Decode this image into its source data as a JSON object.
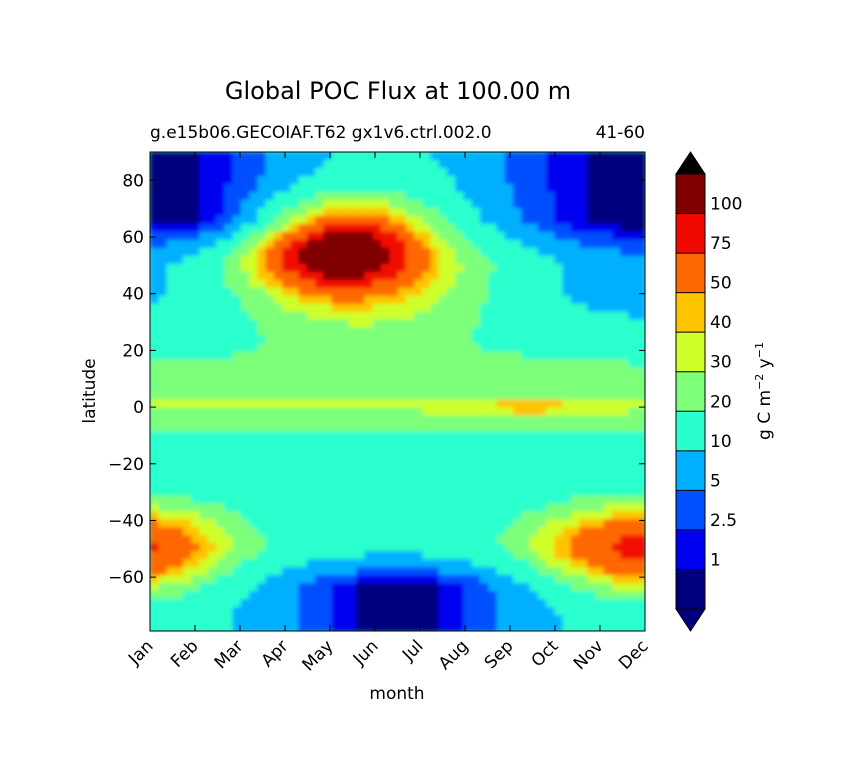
{
  "chart_data": {
    "type": "heatmap",
    "subtype": "filled-contour",
    "title": "Global POC Flux at 100.00 m",
    "subtitle_left": "g.e15b06.GECOIAF.T62 gx1v6.ctrl.002.0",
    "subtitle_right": "41-60",
    "xlabel": "month",
    "ylabel": "latitude",
    "x_categories": [
      "Jan",
      "Feb",
      "Mar",
      "Apr",
      "May",
      "Jun",
      "Jul",
      "Aug",
      "Sep",
      "Oct",
      "Nov",
      "Dec"
    ],
    "yticks": [
      80,
      60,
      40,
      20,
      0,
      -20,
      -40,
      -60
    ],
    "ytick_labels": [
      "80",
      "60",
      "40",
      "20",
      "0",
      "−20",
      "−40",
      "−60"
    ],
    "ylim": [
      -79,
      90
    ],
    "colorbar": {
      "label_text": "g C m",
      "label_sup1": "−2",
      "label_mid": " y",
      "label_sup2": "−1",
      "levels": [
        1,
        2.5,
        5,
        10,
        20,
        30,
        40,
        50,
        75,
        100
      ],
      "tick_labels": [
        "1",
        "2.5",
        "5",
        "10",
        "20",
        "30",
        "40",
        "50",
        "75",
        "100"
      ],
      "extend": "both",
      "colors": [
        "#00007f",
        "#0000f0",
        "#0050ff",
        "#00b0ff",
        "#29ffce",
        "#7dff7a",
        "#ceff29",
        "#ffc400",
        "#ff6800",
        "#f10800",
        "#7f0000"
      ],
      "under_color": "#00007f",
      "over_color": "#000000"
    },
    "grid": false,
    "field_description": {
      "tropics": "10–30 band from about 0 to 20 N year-round, 20–30 along the equator with 30–40 peak in Sep",
      "north_atlantic_bloom": "peaks above 100 near 55 N in May–Jun",
      "southern_ocean_bloom": "50–75 near 50 S in Nov–Jan",
      "polar_winter": "below 1 at high latitudes in local winter"
    }
  }
}
